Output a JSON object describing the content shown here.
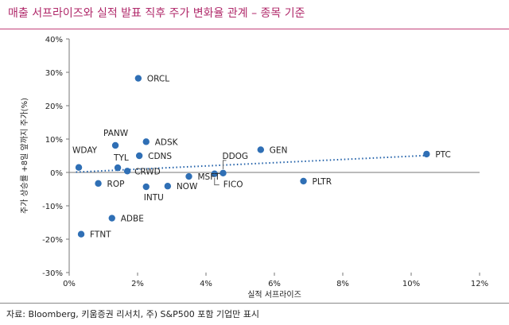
{
  "title": "매출 서프라이즈와 실적 발표 직후 주가 변화율 관계 – 종목 기준",
  "source": "자료: Bloomberg, 키움증권 리서치, 주) S&P500 포함 기업만 표시",
  "colors": {
    "title": "#b0296a",
    "point": "#2f6fb5",
    "trend": "#1f5fa8"
  },
  "chart_data": {
    "type": "scatter",
    "title": "매출 서프라이즈와 실적 발표 직후 주가 변화율 관계 – 종목 기준",
    "xlabel": "실적 서프라이즈",
    "ylabel": "주가 상승률 +8일 앞까지 주가(%)",
    "xlim": [
      0,
      12
    ],
    "ylim": [
      -30,
      40
    ],
    "xticks": [
      0,
      2,
      4,
      6,
      8,
      10,
      12
    ],
    "yticks": [
      -30,
      -20,
      -10,
      0,
      10,
      20,
      30,
      40
    ],
    "xtick_labels": [
      "0%",
      "2%",
      "4%",
      "6%",
      "8%",
      "10%",
      "12%"
    ],
    "ytick_labels": [
      "-30%",
      "-20%",
      "-10%",
      "0%",
      "10%",
      "20%",
      "30%",
      "40%"
    ],
    "grid": false,
    "trendline": {
      "style": "dotted",
      "x": [
        0.2,
        10.5
      ],
      "y": [
        0.1,
        5.1
      ]
    },
    "points": [
      {
        "label": "ORCL",
        "x": 2.02,
        "y": 28.2
      },
      {
        "label": "PANW",
        "x": 1.35,
        "y": 8.1
      },
      {
        "label": "ADSK",
        "x": 2.25,
        "y": 9.2
      },
      {
        "label": "CDNS",
        "x": 2.05,
        "y": 5.0
      },
      {
        "label": "WDAY",
        "x": 0.28,
        "y": 1.5
      },
      {
        "label": "TYL",
        "x": 1.42,
        "y": 1.4
      },
      {
        "label": "CRWD",
        "x": 1.7,
        "y": 0.4
      },
      {
        "label": "ROP",
        "x": 0.85,
        "y": -3.3
      },
      {
        "label": "INTU",
        "x": 2.25,
        "y": -4.3
      },
      {
        "label": "NOW",
        "x": 2.88,
        "y": -4.1
      },
      {
        "label": "MSFT",
        "x": 3.5,
        "y": -1.2
      },
      {
        "label": "DDOG",
        "x": 4.5,
        "y": -0.2
      },
      {
        "label": "FICO",
        "x": 4.25,
        "y": -0.4
      },
      {
        "label": "GEN",
        "x": 5.6,
        "y": 6.8
      },
      {
        "label": "PLTR",
        "x": 6.85,
        "y": -2.6
      },
      {
        "label": "PTC",
        "x": 10.45,
        "y": 5.5
      },
      {
        "label": "ADBE",
        "x": 1.25,
        "y": -13.7
      },
      {
        "label": "FTNT",
        "x": 0.35,
        "y": -18.5
      }
    ]
  }
}
